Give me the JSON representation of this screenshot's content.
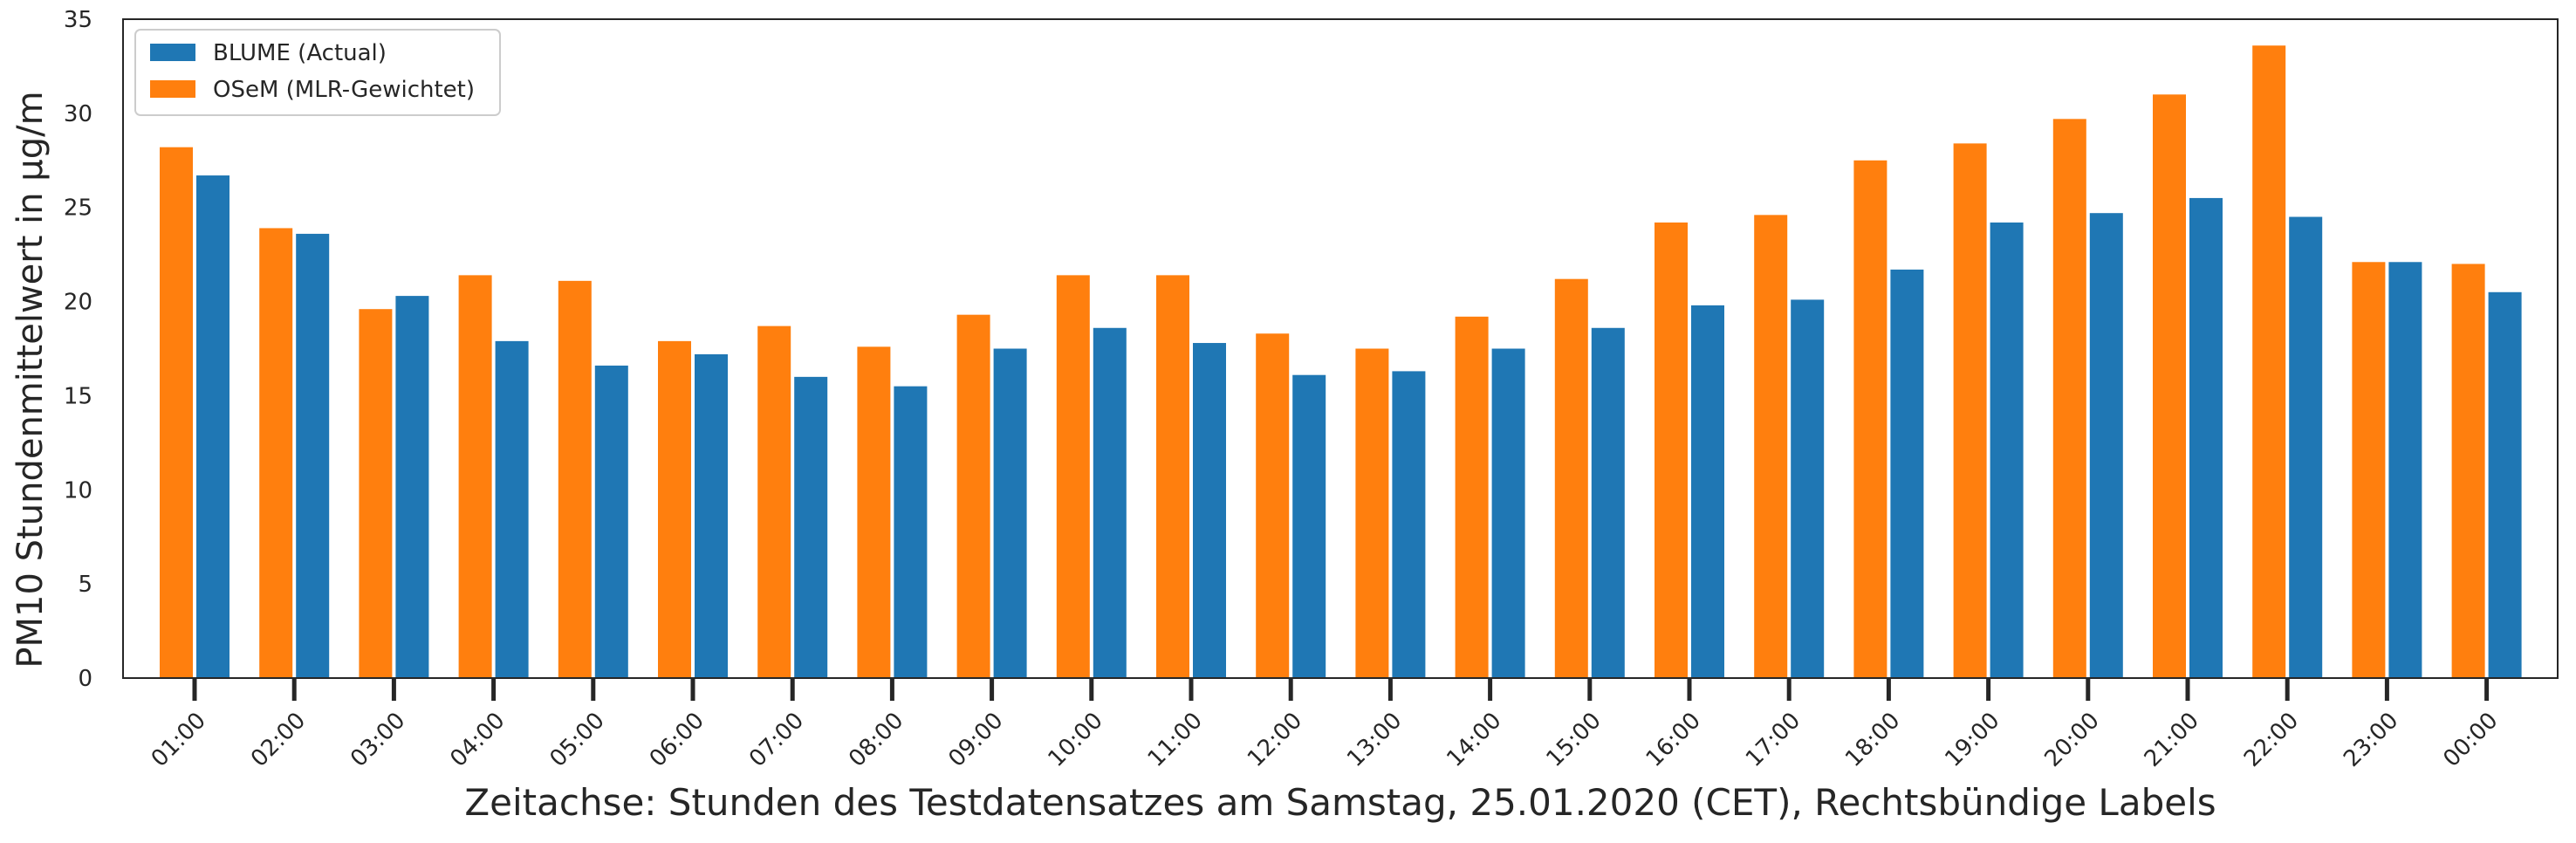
{
  "chart_data": {
    "type": "bar",
    "title": "",
    "xlabel": "Zeitachse: Stunden des Testdatensatzes am Samstag, 25.01.2020 (CET), Rechtsbündige Labels",
    "ylabel": "PM10 Stundenmittelwert in µg/m",
    "ylim": [
      0,
      35
    ],
    "yticks": [
      0,
      5,
      10,
      15,
      20,
      25,
      30,
      35
    ],
    "grid": false,
    "legend_position": "top-left",
    "categories": [
      "01:00",
      "02:00",
      "03:00",
      "04:00",
      "05:00",
      "06:00",
      "07:00",
      "08:00",
      "09:00",
      "10:00",
      "11:00",
      "12:00",
      "13:00",
      "14:00",
      "15:00",
      "16:00",
      "17:00",
      "18:00",
      "19:00",
      "20:00",
      "21:00",
      "22:00",
      "23:00",
      "00:00"
    ],
    "series": [
      {
        "name": "BLUME (Actual)",
        "color": "#1f77b4",
        "values": [
          26.7,
          23.6,
          20.3,
          17.9,
          16.6,
          17.2,
          16.0,
          15.5,
          17.5,
          18.6,
          17.8,
          16.1,
          16.3,
          17.5,
          18.6,
          19.8,
          20.1,
          21.7,
          24.2,
          24.7,
          25.5,
          24.5,
          22.1,
          20.5
        ]
      },
      {
        "name": "OSeM (MLR-Gewichtet)",
        "color": "#ff7f0e",
        "values": [
          28.2,
          23.9,
          19.6,
          21.4,
          21.1,
          17.9,
          18.7,
          17.6,
          19.3,
          21.4,
          21.4,
          18.3,
          17.5,
          19.2,
          21.2,
          24.2,
          24.6,
          27.5,
          28.4,
          29.7,
          31.0,
          33.6,
          22.1,
          22.0
        ]
      }
    ]
  }
}
